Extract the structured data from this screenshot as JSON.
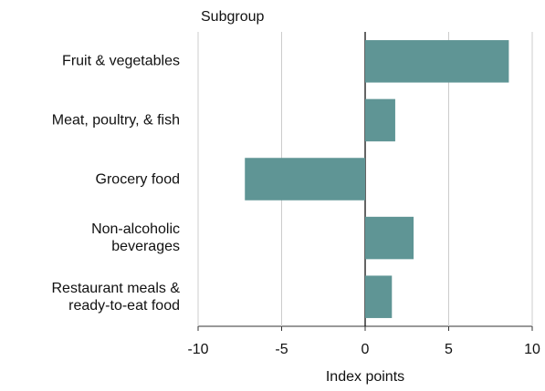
{
  "chart_data": {
    "type": "hbar",
    "y_axis_title": "Subgroup",
    "x_label": "Index points",
    "categories": [
      "Fruit & vegetables",
      "Meat, poultry, & fish",
      "Grocery food",
      "Non-alcoholic\nbeverages",
      "Restaurant meals &\nready-to-eat food"
    ],
    "values": [
      8.6,
      1.8,
      -7.2,
      2.9,
      1.6
    ],
    "color": "#5f9595",
    "xlim": [
      -10,
      10
    ],
    "xticks": [
      -10,
      -5,
      0,
      5,
      10
    ],
    "grid": true
  }
}
